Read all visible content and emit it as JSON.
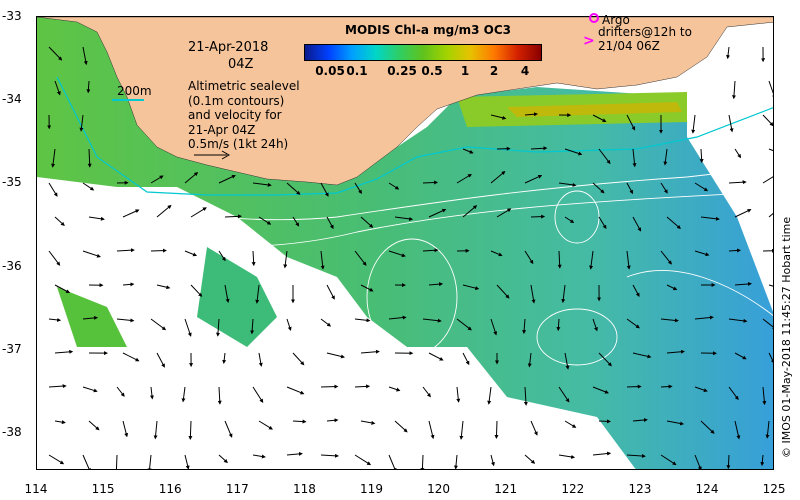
{
  "map": {
    "date": "21-Apr-2018",
    "time": "04Z",
    "depth_label": "200m",
    "legend_lines": [
      "Altimetric sealevel",
      "(0.1m contours)",
      "and velocity for",
      "21-Apr 04Z",
      "0.5m/s (1kt 24h)"
    ],
    "colorbar_title": "MODIS Chl-a mg/m3 OC3",
    "colorbar_ticks": [
      "0.05",
      "0.1",
      "0.25",
      "0.5",
      "1",
      "2",
      "4"
    ],
    "argo_label": "Argo",
    "drifter_lines": [
      "drifters@12h to",
      "21/04 06Z"
    ],
    "credit": "© IMOS 01-May-2018 11:45:27 Hobart time",
    "x_ticks": [
      "114",
      "115",
      "116",
      "117",
      "118",
      "119",
      "120",
      "121",
      "122",
      "123",
      "124",
      "125"
    ],
    "y_ticks": [
      "-33",
      "-34",
      "-35",
      "-36",
      "-37",
      "-38"
    ],
    "colors": {
      "land": "#f5c49b",
      "isobath": "#00c8d0",
      "argo": "#ff00ff"
    }
  }
}
